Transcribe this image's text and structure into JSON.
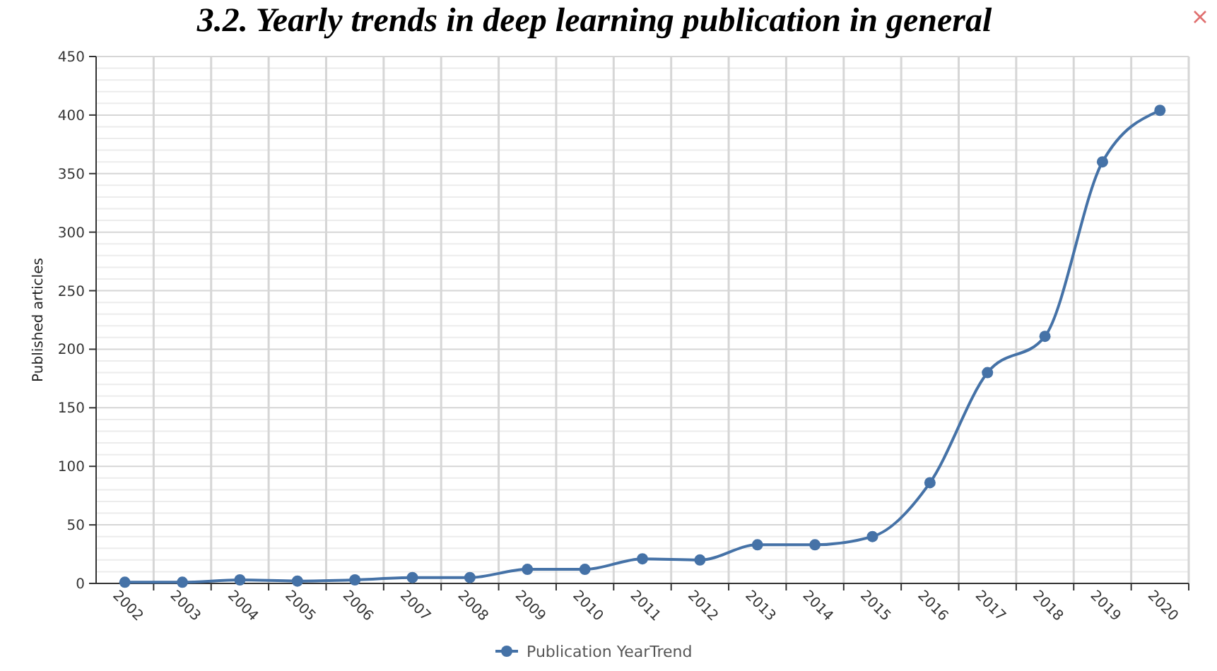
{
  "chart_data": {
    "type": "line",
    "title": "3.2.  Yearly trends in deep learning publication in general",
    "ylabel": "Published articles",
    "categories": [
      "2002",
      "2003",
      "2004",
      "2005",
      "2006",
      "2007",
      "2008",
      "2009",
      "2010",
      "2011",
      "2012",
      "2013",
      "2014",
      "2015",
      "2016",
      "2017",
      "2018",
      "2019",
      "2020"
    ],
    "series": [
      {
        "name": "Publication YearTrend",
        "color": "#4572a7",
        "values": [
          1,
          1,
          3,
          2,
          3,
          5,
          5,
          12,
          12,
          21,
          20,
          33,
          33,
          40,
          86,
          180,
          211,
          360,
          404
        ]
      }
    ],
    "ylim": [
      0,
      450
    ],
    "yticks": [
      0,
      {
        "value": 10,
        "label": null
      },
      {
        "value": 20,
        "label": null
      },
      {
        "value": 30,
        "label": null
      },
      {
        "value": 40,
        "label": null
      },
      50,
      {
        "value": 60,
        "label": null
      },
      {
        "value": 70,
        "label": null
      },
      {
        "value": 80,
        "label": null
      },
      {
        "value": 90,
        "label": null
      },
      100,
      {
        "value": 110,
        "label": null
      },
      {
        "value": 120,
        "label": null
      },
      {
        "value": 130,
        "label": null
      },
      {
        "value": 140,
        "label": null
      },
      150,
      {
        "value": 160,
        "label": null
      },
      {
        "value": 170,
        "label": null
      },
      {
        "value": 180,
        "label": null
      },
      {
        "value": 190,
        "label": null
      },
      200,
      {
        "value": 210,
        "label": null
      },
      {
        "value": 220,
        "label": null
      },
      {
        "value": 230,
        "label": null
      },
      {
        "value": 240,
        "label": null
      },
      250,
      {
        "value": 260,
        "label": null
      },
      {
        "value": 270,
        "label": null
      },
      {
        "value": 280,
        "label": null
      },
      {
        "value": 290,
        "label": null
      },
      300,
      {
        "value": 310,
        "label": null
      },
      {
        "value": 320,
        "label": null
      },
      {
        "value": 330,
        "label": null
      },
      {
        "value": 340,
        "label": null
      },
      350,
      {
        "value": 360,
        "label": null
      },
      {
        "value": 370,
        "label": null
      },
      {
        "value": 380,
        "label": null
      },
      {
        "value": 390,
        "label": null
      },
      400,
      {
        "value": 410,
        "label": null
      },
      {
        "value": 420,
        "label": null
      },
      {
        "value": 430,
        "label": null
      },
      {
        "value": 440,
        "label": null
      },
      450
    ],
    "grid": true,
    "legend": "bottom",
    "marker": "circle",
    "line_style": "solid"
  }
}
